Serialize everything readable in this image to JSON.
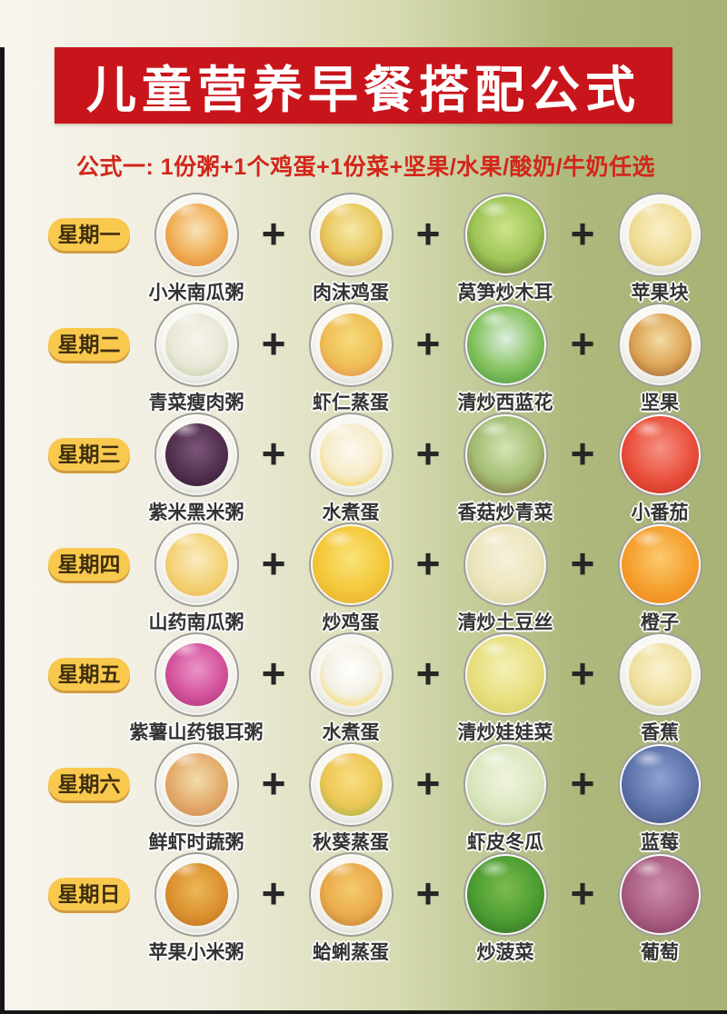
{
  "page": {
    "title": "儿童营养早餐搭配公式",
    "formula": "公式一: 1份粥+1个鸡蛋+1份菜+坚果/水果/酸奶/牛奶任选",
    "plus_sign": "+"
  },
  "colors": {
    "banner_bg": "#c8151b",
    "banner_text": "#ffffff",
    "formula_text": "#d2261a",
    "badge_bg": "#f9c94e",
    "badge_text": "#3e2e0d",
    "label_text": "#333333",
    "background_left": "#f7f5ee",
    "background_right": "#a7b274"
  },
  "days": [
    {
      "day": "星期一",
      "items": [
        {
          "label": "小米南瓜粥",
          "icon": "millet-pumpkin-porridge",
          "kind": "bowl",
          "colors": [
            "#f8e3b8",
            "#f0ae56",
            "#db8435"
          ]
        },
        {
          "label": "肉沫鸡蛋",
          "icon": "minced-pork-steamed-egg",
          "kind": "bowl",
          "colors": [
            "#f6e8a8",
            "#eac85e",
            "#c08a48"
          ]
        },
        {
          "label": "莴笋炒木耳",
          "icon": "celtuce-wood-ear-stirfry",
          "kind": "full",
          "colors": [
            "#cfe48a",
            "#9cc455",
            "#57622f"
          ]
        },
        {
          "label": "苹果块",
          "icon": "apple-chunks",
          "kind": "bowl",
          "colors": [
            "#f9f0c8",
            "#f0dd96",
            "#ddc172"
          ]
        }
      ]
    },
    {
      "day": "星期二",
      "items": [
        {
          "label": "青菜瘦肉粥",
          "icon": "greens-lean-pork-congee",
          "kind": "bowl",
          "colors": [
            "#f6f4ea",
            "#e9e8d8",
            "#c2cb9d"
          ]
        },
        {
          "label": "虾仁蒸蛋",
          "icon": "shrimp-steamed-egg",
          "kind": "bowl",
          "colors": [
            "#f7da7d",
            "#efbf55",
            "#e2874f"
          ]
        },
        {
          "label": "清炒西蓝花",
          "icon": "stir-fried-broccoli",
          "kind": "full",
          "colors": [
            "#ddeee0",
            "#85c25d",
            "#44923f"
          ]
        },
        {
          "label": "坚果",
          "icon": "mixed-nuts",
          "kind": "bowl",
          "colors": [
            "#f2dca4",
            "#dda455",
            "#93603a"
          ]
        }
      ]
    },
    {
      "day": "星期三",
      "items": [
        {
          "label": "紫米黑米粥",
          "icon": "purple-black-rice-congee",
          "kind": "bowl",
          "colors": [
            "#7a5578",
            "#53304f",
            "#2e1b33"
          ]
        },
        {
          "label": "水煮蛋",
          "icon": "boiled-egg-smiley",
          "kind": "bowl",
          "colors": [
            "#fcf9ef",
            "#f6ecca",
            "#f2ca41"
          ]
        },
        {
          "label": "香菇炒青菜",
          "icon": "mushroom-greens-stirfry",
          "kind": "full",
          "colors": [
            "#d4e4b4",
            "#a3bd72",
            "#7c5f3c"
          ]
        },
        {
          "label": "小番茄",
          "icon": "cherry-tomatoes",
          "kind": "full",
          "colors": [
            "#f59181",
            "#ea4f3c",
            "#c32d22"
          ]
        }
      ]
    },
    {
      "day": "星期四",
      "items": [
        {
          "label": "山药南瓜粥",
          "icon": "yam-pumpkin-congee",
          "kind": "bowl",
          "colors": [
            "#f9ecc0",
            "#f4d276",
            "#ecb94f"
          ]
        },
        {
          "label": "炒鸡蛋",
          "icon": "scrambled-eggs",
          "kind": "full",
          "colors": [
            "#fae379",
            "#f4c83a",
            "#e3ab2c"
          ]
        },
        {
          "label": "清炒土豆丝",
          "icon": "shredded-potato-stirfry",
          "kind": "full",
          "colors": [
            "#f6f2dc",
            "#ece5bd",
            "#d5cf93"
          ]
        },
        {
          "label": "橙子",
          "icon": "orange-slices",
          "kind": "full",
          "colors": [
            "#fcc96e",
            "#f59f2d",
            "#ea831b"
          ]
        }
      ]
    },
    {
      "day": "星期五",
      "items": [
        {
          "label": "紫薯山药银耳粥",
          "icon": "purple-yam-tremella-congee",
          "kind": "bowl",
          "colors": [
            "#eb95c6",
            "#d4539e",
            "#a63473"
          ]
        },
        {
          "label": "水煮蛋",
          "icon": "boiled-egg-halves",
          "kind": "bowl",
          "colors": [
            "#ffffff",
            "#f3f0e3",
            "#f4d13e"
          ]
        },
        {
          "label": "清炒娃娃菜",
          "icon": "baby-cabbage-stirfry",
          "kind": "full",
          "colors": [
            "#f4f0b6",
            "#e7df7f",
            "#d2cc5e"
          ]
        },
        {
          "label": "香蕉",
          "icon": "banana-slices",
          "kind": "bowl",
          "colors": [
            "#faf2d0",
            "#f0e1a2",
            "#dcc675"
          ]
        }
      ]
    },
    {
      "day": "星期六",
      "items": [
        {
          "label": "鲜虾时蔬粥",
          "icon": "shrimp-vegetable-congee",
          "kind": "bowl",
          "colors": [
            "#f4dcab",
            "#e3ab6b",
            "#cc884d"
          ]
        },
        {
          "label": "秋葵蒸蛋",
          "icon": "okra-steamed-egg",
          "kind": "bowl",
          "colors": [
            "#f7df83",
            "#eec655",
            "#93b04d"
          ]
        },
        {
          "label": "虾皮冬瓜",
          "icon": "winter-melon-dried-shrimp",
          "kind": "full",
          "colors": [
            "#f0f4df",
            "#dbe7bf",
            "#bbd199"
          ]
        },
        {
          "label": "蓝莓",
          "icon": "blueberries",
          "kind": "full",
          "colors": [
            "#8da3d2",
            "#5d73ab",
            "#3d4d7d"
          ]
        }
      ]
    },
    {
      "day": "星期日",
      "items": [
        {
          "label": "苹果小米粥",
          "icon": "apple-millet-congee",
          "kind": "bowl",
          "colors": [
            "#ecb757",
            "#dc9230",
            "#bb6d22"
          ]
        },
        {
          "label": "蛤蜊蒸蛋",
          "icon": "clam-steamed-egg",
          "kind": "bowl",
          "colors": [
            "#f4cb6d",
            "#eaab4c",
            "#bb7b3a"
          ]
        },
        {
          "label": "炒菠菜",
          "icon": "stir-fried-spinach",
          "kind": "full",
          "colors": [
            "#7dbb4d",
            "#4c9d32",
            "#316d22"
          ]
        },
        {
          "label": "葡萄",
          "icon": "grapes",
          "kind": "full",
          "colors": [
            "#cb8dac",
            "#aa5d82",
            "#7d3d5d"
          ]
        }
      ]
    }
  ]
}
